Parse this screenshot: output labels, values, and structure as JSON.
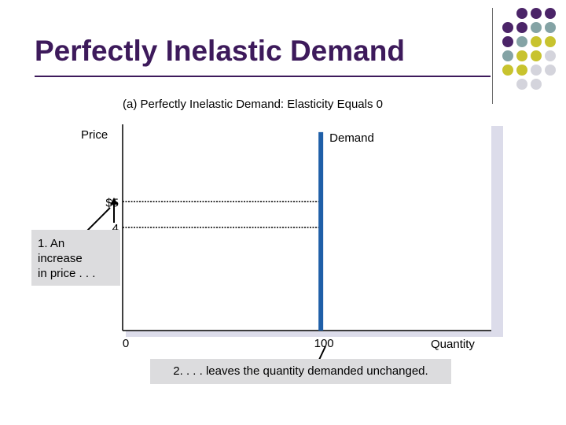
{
  "slide": {
    "title": "Perfectly Inelastic Demand",
    "accent_colors": {
      "title": "#3d1a5b",
      "dot_purple": "#4b2468",
      "dot_teal": "#84a3a5",
      "dot_olive": "#c8c32e",
      "dot_gray": "#d4d4dc"
    }
  },
  "chart_data": {
    "type": "line",
    "title": "(a) Perfectly Inelastic Demand: Elasticity Equals 0",
    "xlabel": "Quantity",
    "ylabel": "Price",
    "series": [
      {
        "name": "Demand",
        "points": [
          {
            "x": 100,
            "y": 0
          },
          {
            "x": 100,
            "y": 7.7
          }
        ],
        "color": "#1f5fa8"
      }
    ],
    "x_tick_labels": [
      "0",
      "100"
    ],
    "y_tick_labels": [
      "$5",
      "4"
    ],
    "reference_lines": [
      {
        "axis": "y",
        "value": 5,
        "style": "dotted"
      },
      {
        "axis": "y",
        "value": 4,
        "style": "dotted"
      }
    ],
    "xlim": [
      0,
      186
    ],
    "ylim": [
      0,
      8
    ],
    "grid": false
  },
  "annotations": {
    "price_increase": "1. An\nincrease\nin price . . .",
    "quantity_unchanged": "2. . . . leaves the quantity demanded unchanged."
  }
}
